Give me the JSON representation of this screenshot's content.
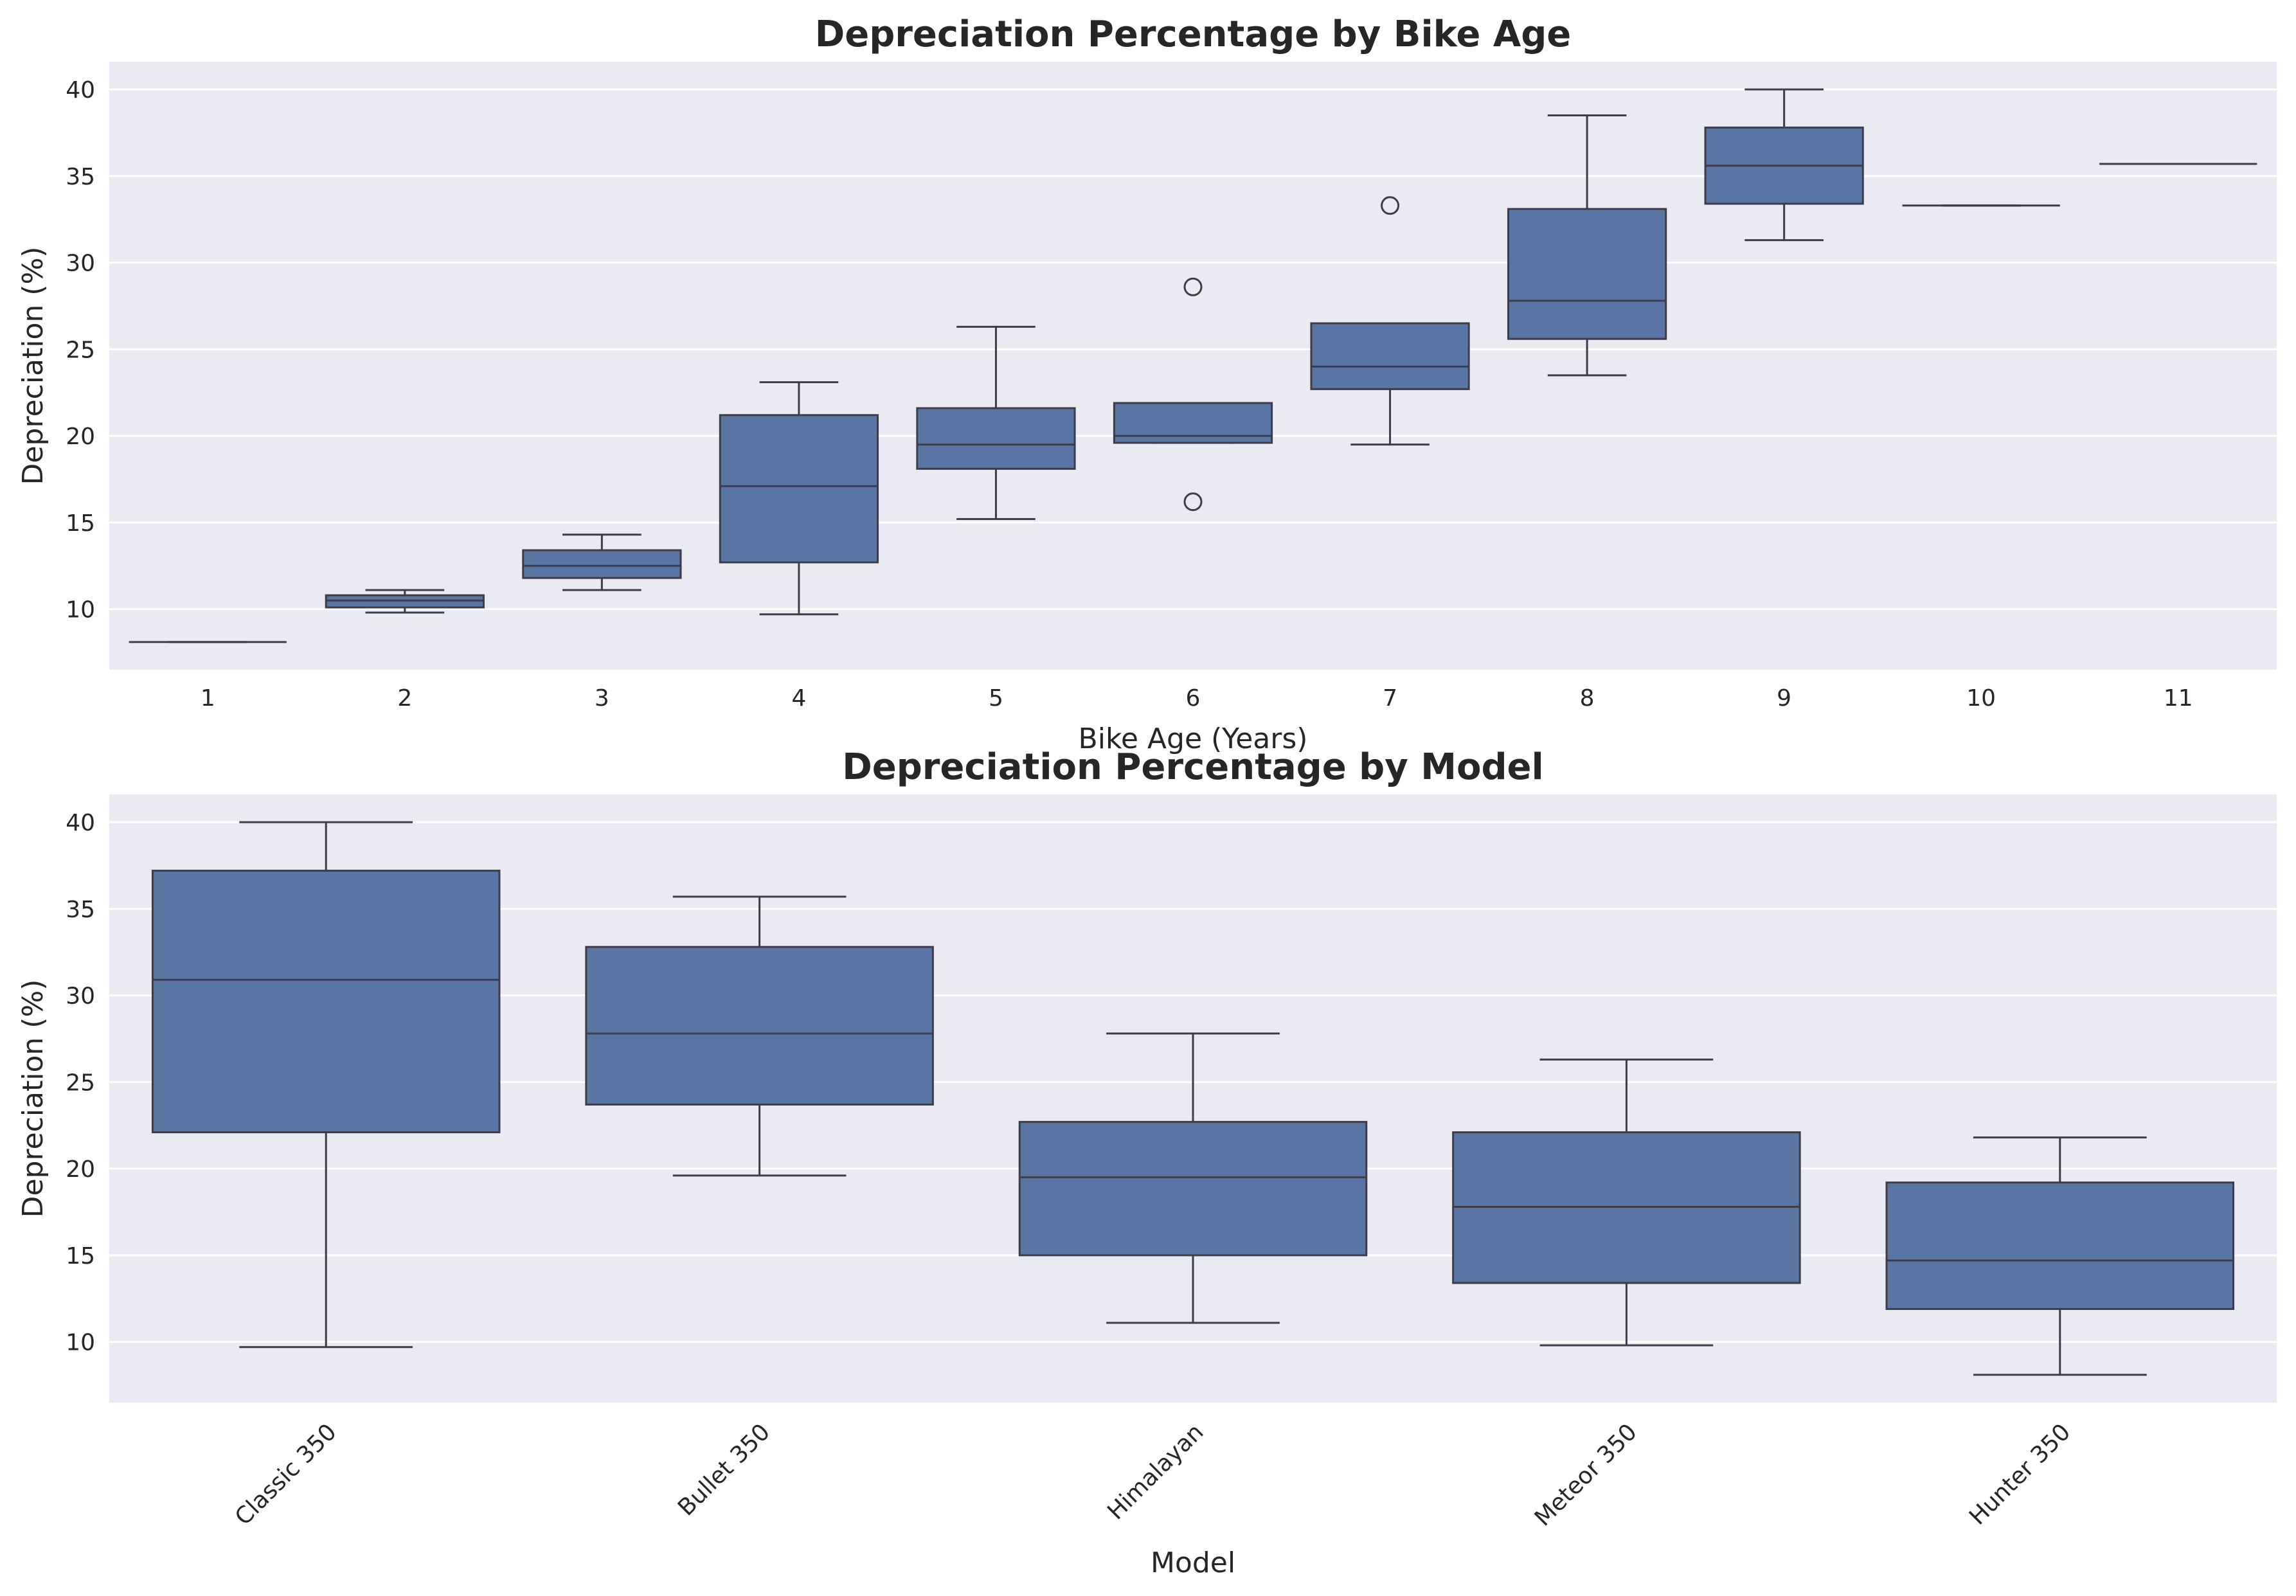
{
  "colors": {
    "plot_background": "#eaeaf2",
    "grid": "#ffffff",
    "box_fill": "#5875a4",
    "line": "#3d3d4a",
    "text": "#262626"
  },
  "chart_data": [
    {
      "type": "box",
      "title": "Depreciation Percentage by Bike Age",
      "xlabel": "Bike Age (Years)",
      "ylabel": "Depreciation (%)",
      "ylim": [
        6.5,
        41.6
      ],
      "yticks": [
        10,
        15,
        20,
        25,
        30,
        35,
        40
      ],
      "grid": true,
      "categories": [
        "1",
        "2",
        "3",
        "4",
        "5",
        "6",
        "7",
        "8",
        "9",
        "10",
        "11"
      ],
      "boxes": [
        {
          "category": "1",
          "whisker_low": 8.1,
          "q1": 8.1,
          "median": 8.1,
          "q3": 8.1,
          "whisker_high": 8.1,
          "outliers": []
        },
        {
          "category": "2",
          "whisker_low": 9.8,
          "q1": 10.1,
          "median": 10.5,
          "q3": 10.8,
          "whisker_high": 11.1,
          "outliers": []
        },
        {
          "category": "3",
          "whisker_low": 11.1,
          "q1": 11.8,
          "median": 12.5,
          "q3": 13.4,
          "whisker_high": 14.3,
          "outliers": []
        },
        {
          "category": "4",
          "whisker_low": 9.7,
          "q1": 12.7,
          "median": 17.1,
          "q3": 21.2,
          "whisker_high": 23.1,
          "outliers": []
        },
        {
          "category": "5",
          "whisker_low": 15.2,
          "q1": 18.1,
          "median": 19.5,
          "q3": 21.6,
          "whisker_high": 26.3,
          "outliers": []
        },
        {
          "category": "6",
          "whisker_low": 19.6,
          "q1": 19.6,
          "median": 20.0,
          "q3": 21.9,
          "whisker_high": 21.9,
          "outliers": [
            16.2,
            28.6
          ]
        },
        {
          "category": "7",
          "whisker_low": 19.5,
          "q1": 22.7,
          "median": 24.0,
          "q3": 26.5,
          "whisker_high": 26.5,
          "outliers": [
            33.3
          ]
        },
        {
          "category": "8",
          "whisker_low": 23.5,
          "q1": 25.6,
          "median": 27.8,
          "q3": 33.1,
          "whisker_high": 38.5,
          "outliers": []
        },
        {
          "category": "9",
          "whisker_low": 31.3,
          "q1": 33.4,
          "median": 35.6,
          "q3": 37.8,
          "whisker_high": 40.0,
          "outliers": []
        },
        {
          "category": "10",
          "whisker_low": 33.3,
          "q1": 33.3,
          "median": 33.3,
          "q3": 33.3,
          "whisker_high": 33.3,
          "outliers": []
        },
        {
          "category": "11",
          "whisker_low": 35.7,
          "q1": 35.7,
          "median": 35.7,
          "q3": 35.7,
          "whisker_high": 35.7,
          "outliers": []
        }
      ]
    },
    {
      "type": "box",
      "title": "Depreciation Percentage by Model",
      "xlabel": "Model",
      "ylabel": "Depreciation (%)",
      "ylim": [
        6.5,
        41.6
      ],
      "yticks": [
        10,
        15,
        20,
        25,
        30,
        35,
        40
      ],
      "grid": true,
      "tick_rotation": -45,
      "categories": [
        "Classic 350",
        "Bullet 350",
        "Himalayan",
        "Meteor 350",
        "Hunter 350"
      ],
      "boxes": [
        {
          "category": "Classic 350",
          "whisker_low": 9.7,
          "q1": 22.1,
          "median": 30.9,
          "q3": 37.2,
          "whisker_high": 40.0,
          "outliers": []
        },
        {
          "category": "Bullet 350",
          "whisker_low": 19.6,
          "q1": 23.7,
          "median": 27.8,
          "q3": 32.8,
          "whisker_high": 35.7,
          "outliers": []
        },
        {
          "category": "Himalayan",
          "whisker_low": 11.1,
          "q1": 15.0,
          "median": 19.5,
          "q3": 22.7,
          "whisker_high": 27.8,
          "outliers": []
        },
        {
          "category": "Meteor 350",
          "whisker_low": 9.8,
          "q1": 13.4,
          "median": 17.8,
          "q3": 22.1,
          "whisker_high": 26.3,
          "outliers": []
        },
        {
          "category": "Hunter 350",
          "whisker_low": 8.1,
          "q1": 11.9,
          "median": 14.7,
          "q3": 19.2,
          "whisker_high": 21.8,
          "outliers": []
        }
      ]
    }
  ]
}
